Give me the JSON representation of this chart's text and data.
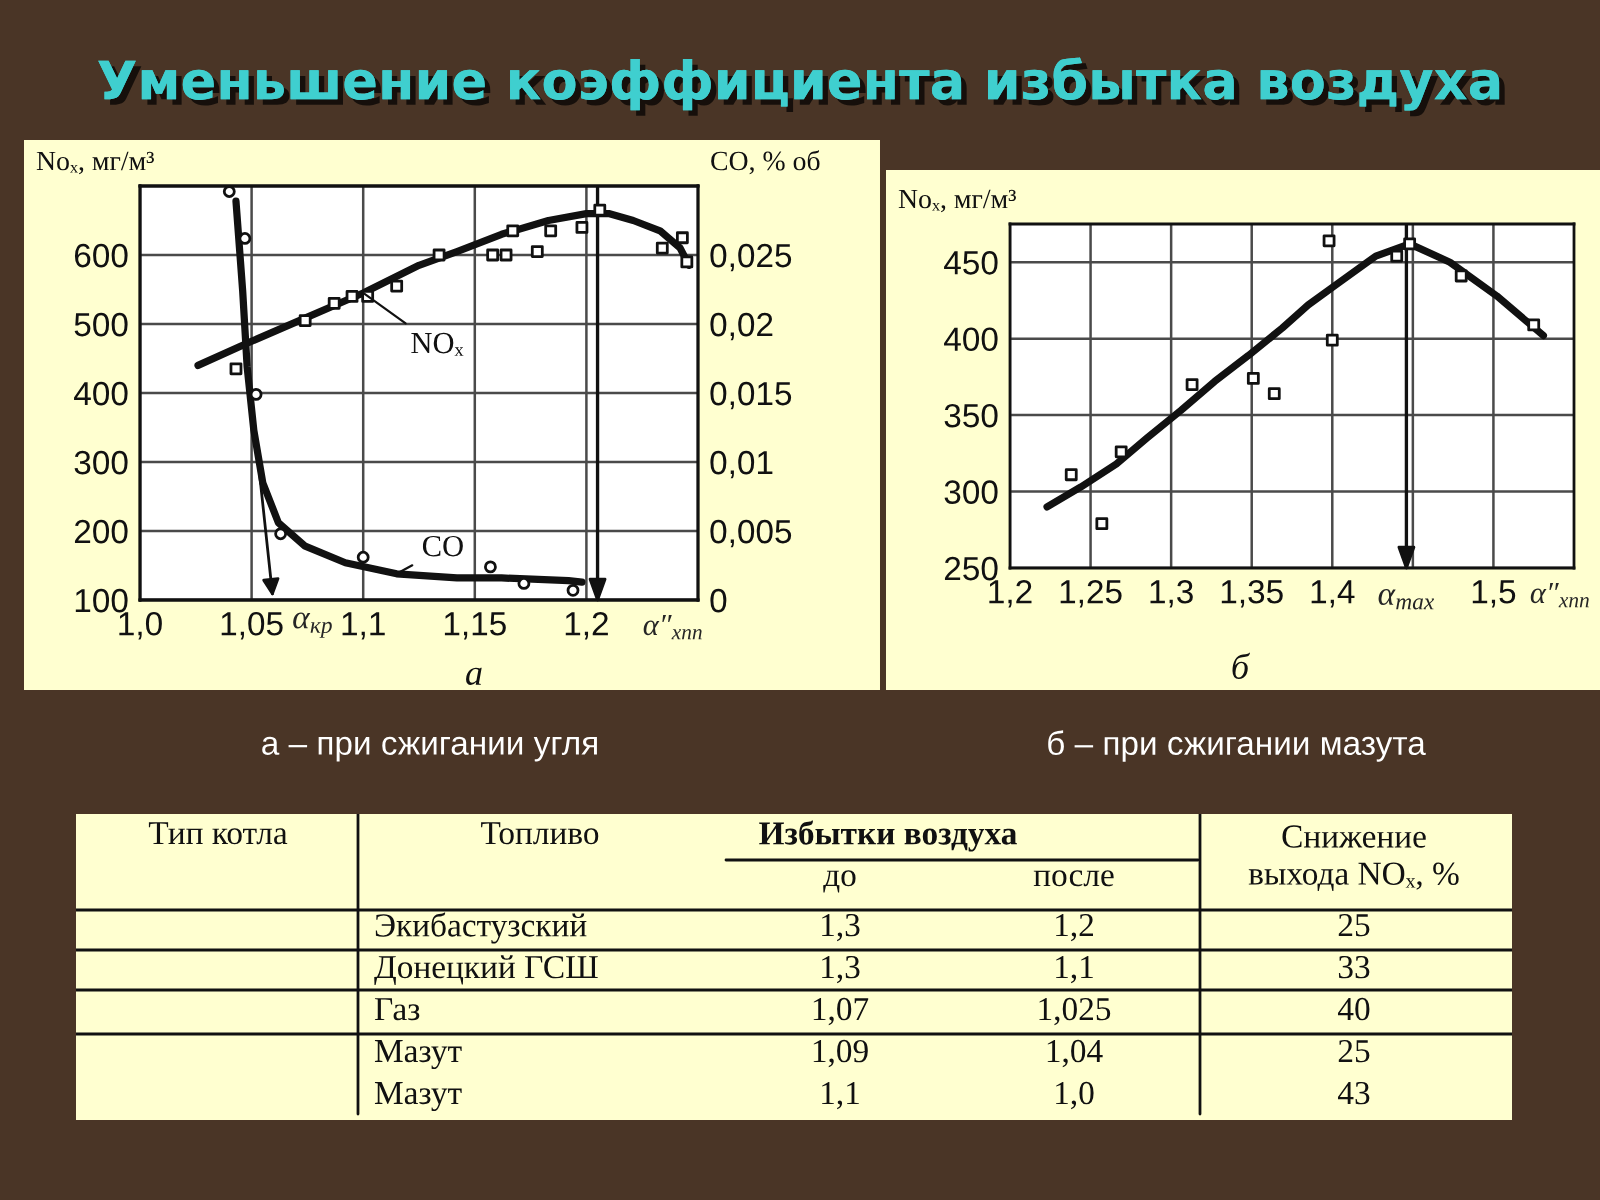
{
  "chart_data": [
    {
      "type": "line",
      "title": "Уменьшение коэффициента избытка воздуха",
      "ylabel": "Noₓ, мг/м³",
      "y2label": "CO, % об",
      "xlabel": "α″$_{хпп}$",
      "xlim": [
        1.0,
        1.25
      ],
      "xticks": [
        {
          "value": 1.0,
          "label": "1,0"
        },
        {
          "value": 1.05,
          "label": "1,05"
        },
        {
          "value": 1.1,
          "label": "1,1"
        },
        {
          "value": 1.15,
          "label": "1,15"
        },
        {
          "value": 1.2,
          "label": "1,2"
        }
      ],
      "ylim": [
        100,
        700
      ],
      "yticks": [
        100,
        200,
        300,
        400,
        500,
        600
      ],
      "y2lim": [
        0,
        0.03
      ],
      "y2ticks": [
        0,
        {
          "value": 0.005,
          "label": "0,005"
        },
        {
          "value": 0.01,
          "label": "0,01"
        },
        {
          "value": 0.015,
          "label": "0,015"
        },
        {
          "value": 0.02,
          "label": "0,02"
        },
        {
          "value": 0.025,
          "label": "0,025"
        }
      ],
      "grid": true,
      "series": [
        {
          "type": "scatter",
          "marker": "square",
          "color": "#111111",
          "x": [
            1.043,
            1.074,
            1.087,
            1.095,
            1.102,
            1.115,
            1.134,
            1.158,
            1.164,
            1.167,
            1.178,
            1.184,
            1.198,
            1.206,
            1.234,
            1.243,
            1.245
          ],
          "values": [
            435,
            505,
            530,
            540,
            540,
            555,
            600,
            600,
            600,
            635,
            605,
            635,
            640,
            665,
            610,
            625,
            590
          ]
        },
        {
          "type": "line",
          "name": "NOₓ",
          "color": "#111111",
          "x": [
            1.026,
            1.05,
            1.075,
            1.1,
            1.125,
            1.142,
            1.162,
            1.183,
            1.2,
            1.21,
            1.221,
            1.233,
            1.242,
            1.246
          ],
          "values": [
            440,
            475,
            510,
            545,
            585,
            605,
            630,
            650,
            660,
            660,
            650,
            635,
            610,
            585
          ]
        },
        {
          "type": "scatter",
          "marker": "circle",
          "axis": "y2",
          "color": "#111111",
          "x": [
            1.04,
            1.047,
            1.052,
            1.063,
            1.1,
            1.157,
            1.172,
            1.194
          ],
          "values": [
            0.0296,
            0.0262,
            0.0149,
            0.0048,
            0.0031,
            0.0024,
            0.0012,
            0.0007
          ]
        },
        {
          "type": "line",
          "name": "CO",
          "axis": "y2",
          "color": "#111111",
          "x": [
            1.043,
            1.046,
            1.048,
            1.051,
            1.055,
            1.062,
            1.074,
            1.092,
            1.115,
            1.142,
            1.162,
            1.192,
            1.198
          ],
          "values": [
            0.0289,
            0.0224,
            0.0169,
            0.0123,
            0.0085,
            0.0056,
            0.0039,
            0.0027,
            0.0019,
            0.0016,
            0.0016,
            0.0014,
            0.0013
          ]
        }
      ],
      "ref_lines": [
        {
          "axis": "x",
          "value": 1.205
        }
      ],
      "annotations": [
        {
          "text": "α$_{кр}$",
          "x": 1.052,
          "y": 330
        },
        "а",
        "а – при сжигании угля"
      ]
    },
    {
      "type": "line",
      "ylabel": "Noₓ, мг/м³",
      "xlabel": "α″$_{хпп}$",
      "xlim": [
        1.2,
        1.55
      ],
      "xticks": [
        {
          "value": 1.2,
          "label": "1,2"
        },
        {
          "value": 1.25,
          "label": "1,25"
        },
        {
          "value": 1.3,
          "label": "1,3"
        },
        {
          "value": 1.35,
          "label": "1,35"
        },
        {
          "value": 1.4,
          "label": "1,4"
        },
        {
          "value": 1.45,
          "label": null
        },
        {
          "value": 1.5,
          "label": "1,5"
        }
      ],
      "ylim": [
        250,
        475
      ],
      "yticks": [
        250,
        300,
        350,
        400,
        450
      ],
      "grid": true,
      "series": [
        {
          "type": "scatter",
          "marker": "square",
          "color": "#111111",
          "x": [
            1.238,
            1.257,
            1.269,
            1.313,
            1.351,
            1.364,
            1.398,
            1.4,
            1.44,
            1.448,
            1.48,
            1.525
          ],
          "values": [
            311,
            279,
            326,
            370,
            374,
            364,
            464,
            399,
            454,
            462,
            441,
            409
          ]
        },
        {
          "type": "line",
          "color": "#111111",
          "x": [
            1.223,
            1.244,
            1.266,
            1.285,
            1.306,
            1.327,
            1.348,
            1.369,
            1.385,
            1.402,
            1.427,
            1.448,
            1.473,
            1.502,
            1.531
          ],
          "values": [
            290,
            303,
            318,
            335,
            353,
            372,
            389,
            407,
            422,
            435,
            454,
            462,
            450,
            428,
            402
          ]
        }
      ],
      "ref_lines": [
        {
          "axis": "x",
          "value": 1.446,
          "label": "α$_{max}$"
        }
      ],
      "annotations": [
        "б",
        "б – при сжигании мазута"
      ]
    },
    {
      "type": "other",
      "ylabel": "Тип котла",
      "xlabel": "Избытки воздуха",
      "categories": [
        "Топливо",
        "до",
        "после",
        "Снижение\nвыхода NOₓ, %"
      ],
      "y_categories": [
        null,
        null,
        null,
        null,
        null
      ],
      "cell_labels": [
        [
          "Экибастузский",
          "1,3",
          "1,2",
          "25"
        ],
        [
          "Донецкий ГСШ",
          "1,3",
          "1,1",
          "33"
        ],
        [
          "Газ",
          "1,07",
          "1,025",
          "40"
        ],
        [
          "Мазут",
          "1,09",
          "1,04",
          "25"
        ],
        [
          "Мазут",
          "1,1",
          "1,0",
          "43"
        ]
      ]
    }
  ]
}
